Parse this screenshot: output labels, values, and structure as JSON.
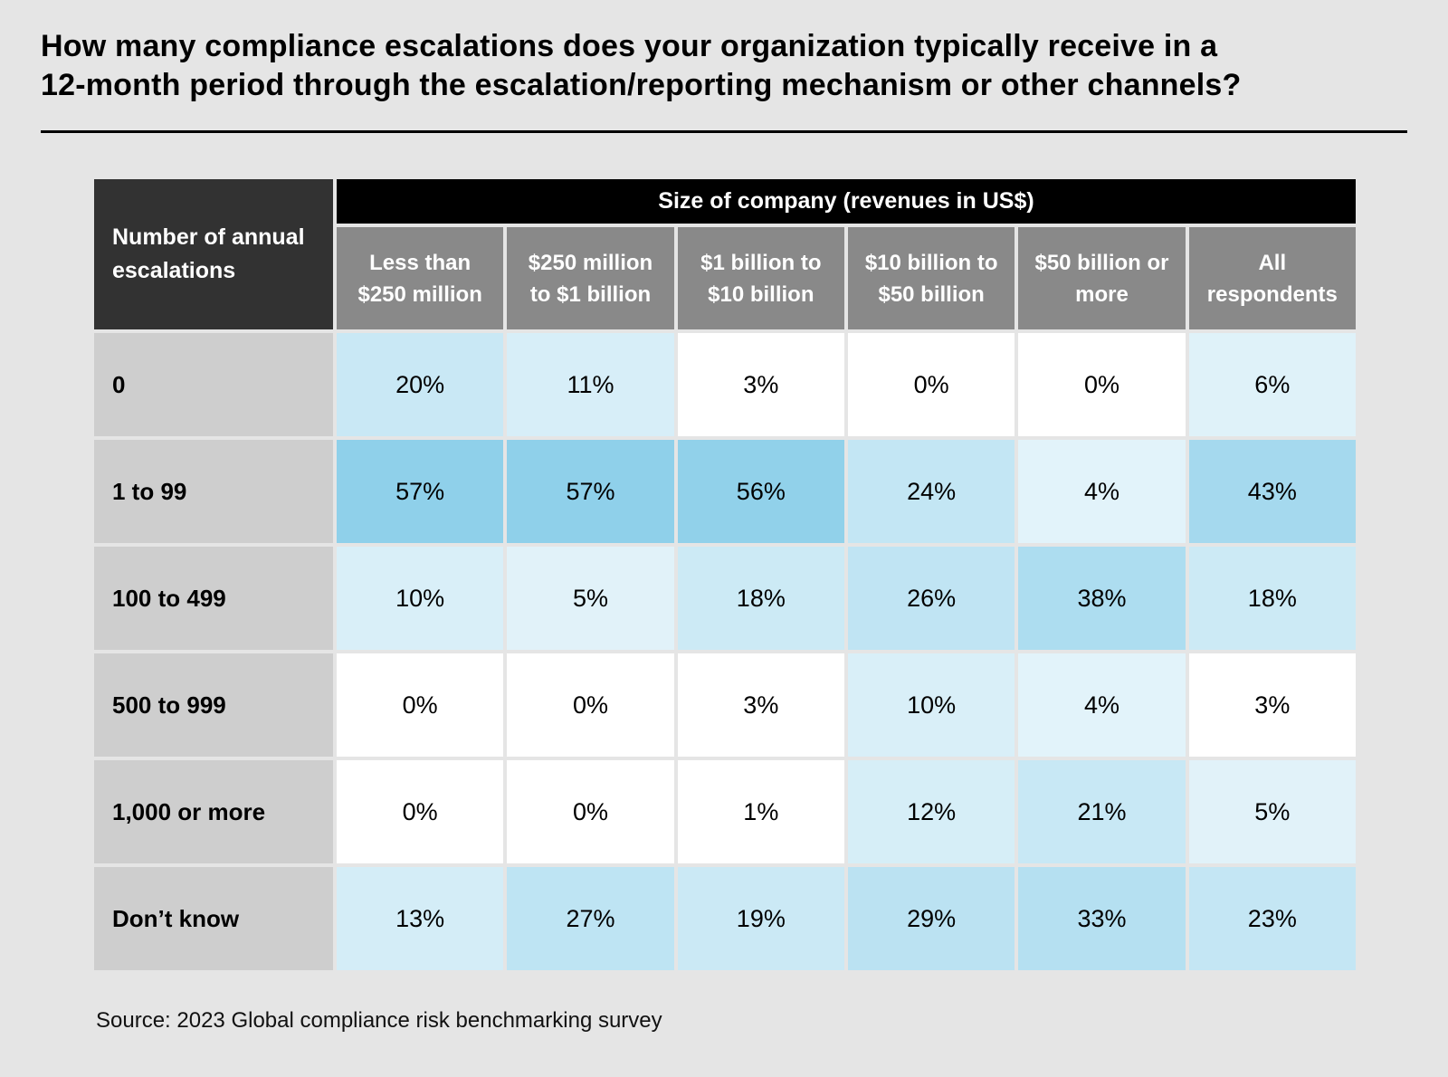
{
  "page": {
    "background_color": "#e5e5e5",
    "title": "How many compliance escalations does your organization typically receive in a\n12-month period through the escalation/reporting mechanism or other channels?",
    "source": "Source: 2023 Global compliance risk benchmarking survey"
  },
  "table": {
    "corner_label": "Number of annual\nescalations",
    "group_header": "Size of company (revenues in US$)",
    "columns_display": [
      "Less than\n$250 million",
      "$250 million\nto $1 billion",
      "$1 billion to\n$10 billion",
      "$10 billion to\n$50 billion",
      "$50 billion or\nmore",
      "All\nrespondents"
    ],
    "styles": {
      "corner_bg": "#323232",
      "group_bg": "#000000",
      "colhead_bg": "#898989",
      "rowlabel_bg": "#cecece",
      "header_text": "#ffffff",
      "cell_text": "#000000"
    }
  },
  "chart_data": {
    "type": "heatmap",
    "title": "How many compliance escalations does your organization typically receive in a 12-month period through the escalation/reporting mechanism or other channels?",
    "row_header": "Number of annual escalations",
    "column_group_header": "Size of company (revenues in US$)",
    "columns": [
      "Less than $250 million",
      "$250 million to $1 billion",
      "$1 billion to $10 billion",
      "$10 billion to $50 billion",
      "$50 billion or more",
      "All respondents"
    ],
    "rows": [
      "0",
      "1 to 99",
      "100 to 499",
      "500 to 999",
      "1,000 or more",
      "Don’t know"
    ],
    "unit": "%",
    "values": [
      [
        20,
        11,
        3,
        0,
        0,
        6
      ],
      [
        57,
        57,
        56,
        24,
        4,
        43
      ],
      [
        10,
        5,
        18,
        26,
        38,
        18
      ],
      [
        0,
        0,
        3,
        10,
        4,
        3
      ],
      [
        0,
        0,
        1,
        12,
        21,
        5
      ],
      [
        13,
        27,
        19,
        29,
        33,
        23
      ]
    ],
    "colorscale": {
      "description": "values at or below white_threshold render white; above it, linear blend from low_color to high_color with t = start_t + (1 - start_t) * value / max_value",
      "white_threshold": 3,
      "start_t": 0.2,
      "max_value": 57,
      "low_color": "#ffffff",
      "high_color": "#8fd0ea"
    },
    "source": "2023 Global compliance risk benchmarking survey"
  }
}
